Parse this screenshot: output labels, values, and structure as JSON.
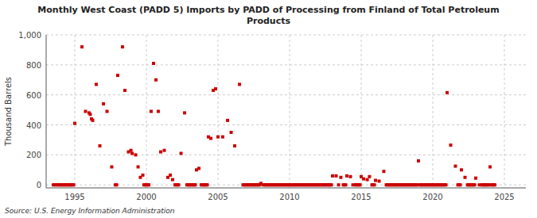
{
  "chart_data": {
    "type": "scatter",
    "title": "Monthly West Coast (PADD 5) Imports by PADD of Processing from Finland of Total Petroleum\nProducts",
    "ylabel": "Thousand Barrels",
    "annotations": [
      "Source: U.S. Energy Information Administration"
    ],
    "color": "#cc0000",
    "marker": "square",
    "grid": true,
    "xlim": [
      1993.0,
      2026.5
    ],
    "ylim": [
      -20,
      1000
    ],
    "xticks": [
      1995,
      2000,
      2005,
      2010,
      2015,
      2020,
      2025
    ],
    "yticks": [
      0,
      200,
      400,
      600,
      800,
      {
        "value": 1000,
        "label": "1,000"
      }
    ],
    "x": [
      1993.5,
      1993.6,
      1993.7,
      1993.8,
      1993.9,
      1994.0,
      1994.08,
      1994.17,
      1994.25,
      1994.33,
      1994.42,
      1994.5,
      1994.58,
      1994.67,
      1994.75,
      1994.83,
      1994.92,
      1995.0,
      1995.5,
      1995.75,
      1996.0,
      1996.08,
      1996.17,
      1996.25,
      1996.5,
      1996.75,
      1997.0,
      1997.25,
      1997.58,
      1997.83,
      1997.92,
      1998.0,
      1998.33,
      1998.5,
      1998.75,
      1998.92,
      1999.0,
      1999.25,
      1999.42,
      1999.58,
      1999.75,
      1999.83,
      1999.92,
      2000.0,
      2000.08,
      2000.17,
      2000.33,
      2000.5,
      2000.67,
      2000.83,
      2001.0,
      2001.25,
      2001.5,
      2001.67,
      2001.83,
      2002.0,
      2002.08,
      2002.17,
      2002.25,
      2002.42,
      2002.67,
      2002.83,
      2002.92,
      2003.0,
      2003.08,
      2003.17,
      2003.25,
      2003.33,
      2003.42,
      2003.5,
      2003.67,
      2003.83,
      2003.92,
      2004.0,
      2004.08,
      2004.17,
      2004.25,
      2004.33,
      2004.5,
      2004.67,
      2004.83,
      2005.0,
      2005.33,
      2005.67,
      2005.92,
      2006.17,
      2006.5,
      2006.75,
      2006.83,
      2006.92,
      2007.0,
      2007.08,
      2007.17,
      2007.25,
      2007.33,
      2007.42,
      2007.5,
      2007.58,
      2007.67,
      2007.75,
      2007.83,
      2007.92,
      2008.0,
      2008.17,
      2008.25,
      2008.33,
      2008.42,
      2008.5,
      2008.58,
      2008.67,
      2008.75,
      2008.83,
      2008.92,
      2009.0,
      2009.08,
      2009.17,
      2009.25,
      2009.33,
      2009.42,
      2009.5,
      2009.58,
      2009.67,
      2009.75,
      2009.83,
      2009.92,
      2010.0,
      2010.08,
      2010.17,
      2010.25,
      2010.33,
      2010.42,
      2010.5,
      2010.58,
      2010.67,
      2010.75,
      2010.83,
      2010.92,
      2011.0,
      2011.08,
      2011.17,
      2011.25,
      2011.33,
      2011.42,
      2011.5,
      2011.58,
      2011.67,
      2011.75,
      2011.83,
      2011.92,
      2012.0,
      2012.08,
      2012.17,
      2012.25,
      2012.33,
      2012.42,
      2012.5,
      2012.58,
      2012.67,
      2012.75,
      2012.83,
      2012.92,
      2013.0,
      2013.25,
      2013.42,
      2013.58,
      2013.75,
      2013.83,
      2013.92,
      2014.0,
      2014.25,
      2014.42,
      2014.58,
      2014.67,
      2014.75,
      2014.83,
      2014.92,
      2015.0,
      2015.17,
      2015.42,
      2015.58,
      2015.75,
      2015.83,
      2015.92,
      2016.0,
      2016.25,
      2016.58,
      2016.75,
      2016.83,
      2016.92,
      2017.0,
      2017.08,
      2017.17,
      2017.25,
      2017.33,
      2017.42,
      2017.5,
      2017.58,
      2017.67,
      2017.75,
      2017.83,
      2017.92,
      2018.0,
      2018.08,
      2018.17,
      2018.25,
      2018.33,
      2018.42,
      2018.5,
      2018.58,
      2018.67,
      2018.75,
      2018.83,
      2018.92,
      2019.0,
      2019.08,
      2019.17,
      2019.25,
      2019.33,
      2019.42,
      2019.5,
      2019.58,
      2019.67,
      2019.75,
      2019.83,
      2019.92,
      2020.0,
      2020.08,
      2020.17,
      2020.25,
      2020.33,
      2020.42,
      2020.5,
      2020.58,
      2020.67,
      2020.75,
      2020.83,
      2020.92,
      2021.0,
      2021.25,
      2021.58,
      2021.75,
      2021.83,
      2021.92,
      2022.0,
      2022.25,
      2022.42,
      2022.5,
      2022.58,
      2022.67,
      2022.75,
      2022.83,
      2022.92,
      2023.0,
      2023.25,
      2023.42,
      2023.5,
      2023.58,
      2023.67,
      2023.75,
      2023.83,
      2023.92,
      2024.0,
      2024.08,
      2024.17,
      2024.25,
      2024.33
    ],
    "values": [
      0,
      0,
      0,
      0,
      0,
      0,
      0,
      0,
      0,
      0,
      0,
      0,
      0,
      0,
      0,
      0,
      0,
      410,
      920,
      490,
      480,
      470,
      440,
      430,
      670,
      260,
      540,
      490,
      120,
      0,
      0,
      730,
      920,
      630,
      220,
      230,
      210,
      200,
      120,
      50,
      65,
      0,
      0,
      0,
      0,
      0,
      490,
      810,
      700,
      490,
      220,
      230,
      50,
      65,
      35,
      0,
      0,
      0,
      0,
      210,
      480,
      0,
      0,
      0,
      0,
      0,
      0,
      0,
      0,
      100,
      110,
      0,
      0,
      0,
      0,
      0,
      0,
      320,
      310,
      630,
      640,
      320,
      320,
      430,
      350,
      260,
      670,
      0,
      0,
      0,
      0,
      0,
      0,
      0,
      0,
      0,
      0,
      0,
      0,
      0,
      0,
      0,
      10,
      0,
      0,
      0,
      0,
      0,
      0,
      0,
      0,
      0,
      0,
      0,
      0,
      0,
      0,
      0,
      0,
      0,
      0,
      0,
      0,
      0,
      0,
      0,
      0,
      0,
      0,
      0,
      0,
      0,
      0,
      0,
      0,
      0,
      0,
      0,
      0,
      0,
      0,
      0,
      0,
      0,
      0,
      0,
      0,
      0,
      0,
      0,
      0,
      0,
      0,
      0,
      0,
      0,
      0,
      0,
      0,
      0,
      0,
      60,
      60,
      0,
      50,
      0,
      0,
      0,
      60,
      55,
      0,
      0,
      0,
      0,
      0,
      0,
      55,
      40,
      35,
      55,
      0,
      0,
      0,
      30,
      25,
      90,
      0,
      0,
      0,
      0,
      0,
      0,
      0,
      0,
      0,
      0,
      0,
      0,
      0,
      0,
      0,
      0,
      0,
      0,
      0,
      0,
      0,
      0,
      0,
      0,
      0,
      0,
      0,
      160,
      0,
      0,
      0,
      0,
      0,
      0,
      0,
      0,
      0,
      0,
      0,
      0,
      0,
      0,
      0,
      0,
      0,
      0,
      0,
      0,
      0,
      0,
      0,
      615,
      265,
      125,
      0,
      0,
      0,
      100,
      50,
      0,
      0,
      0,
      0,
      0,
      0,
      0,
      45,
      0,
      0,
      0,
      0,
      0,
      0,
      0,
      0,
      120,
      0,
      0,
      0,
      0
    ]
  }
}
